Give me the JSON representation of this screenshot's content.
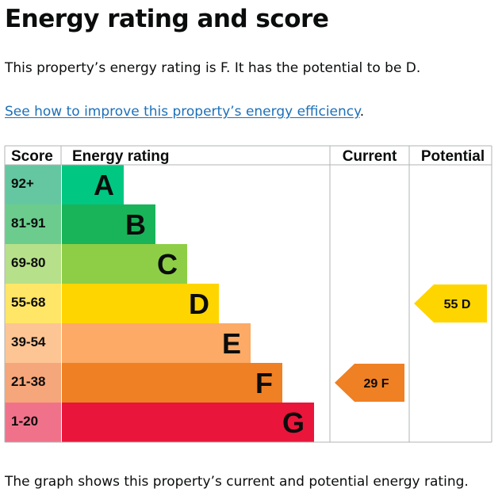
{
  "page": {
    "title": "Energy rating and score",
    "summary": "This property’s energy rating is F. It has the potential to be D.",
    "improve_link": "See how to improve this property’s energy efficiency",
    "improve_suffix": ".",
    "caption": "The graph shows this property’s current and potential energy rating."
  },
  "chart_data": {
    "type": "bar",
    "columns": {
      "score": "Score",
      "rating": "Energy rating",
      "current": "Current",
      "potential": "Potential"
    },
    "bands": [
      {
        "score": "92+",
        "letter": "A",
        "color": "#00c781",
        "score_color": "#64c7a1"
      },
      {
        "score": "81-91",
        "letter": "B",
        "color": "#19b459",
        "score_color": "#6ccc8d"
      },
      {
        "score": "69-80",
        "letter": "C",
        "color": "#8dce46",
        "score_color": "#b7e08a"
      },
      {
        "score": "55-68",
        "letter": "D",
        "color": "#ffd500",
        "score_color": "#ffe666"
      },
      {
        "score": "39-54",
        "letter": "E",
        "color": "#fcaa65",
        "score_color": "#fdc594"
      },
      {
        "score": "21-38",
        "letter": "F",
        "color": "#ef8023",
        "score_color": "#f5a67a"
      },
      {
        "score": "1-20",
        "letter": "G",
        "color": "#e9153b",
        "score_color": "#f0728a"
      }
    ],
    "current": {
      "score": 29,
      "letter": "F",
      "label": "29 F",
      "color": "#ef8023"
    },
    "potential": {
      "score": 55,
      "letter": "D",
      "label": "55 D",
      "color": "#ffd500"
    }
  }
}
